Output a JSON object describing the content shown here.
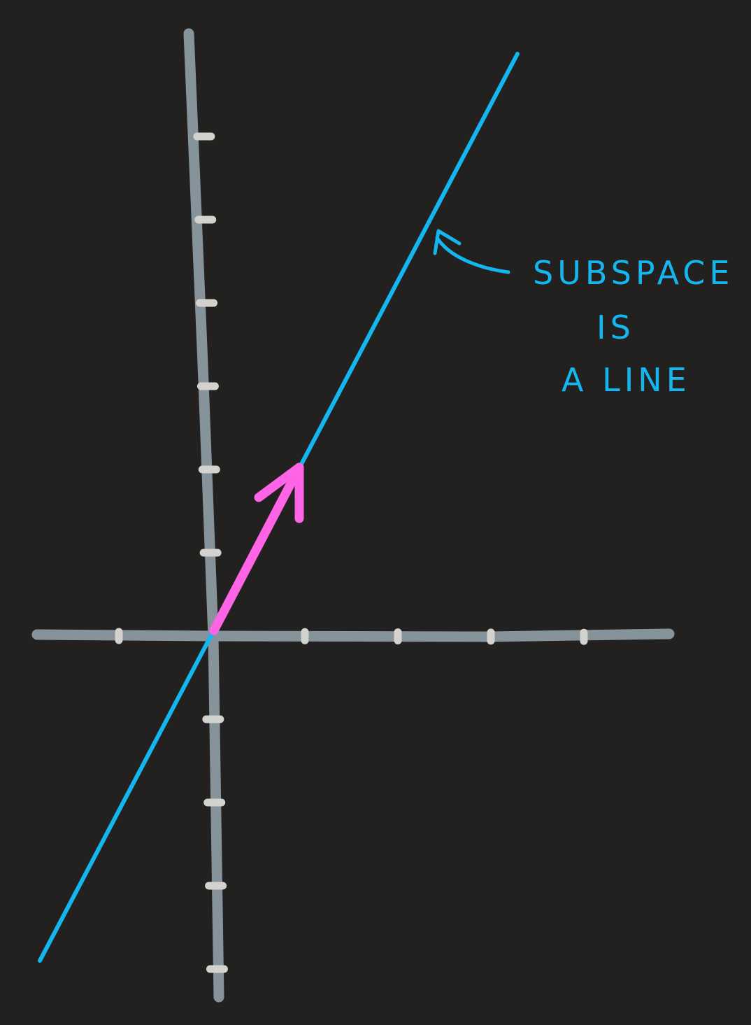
{
  "colors": {
    "background": "#222120",
    "axes": "#87939a",
    "ticks": "#d3d2ce",
    "subspace": "#14b6f0",
    "vector": "#ff63e6"
  },
  "diagram": {
    "type": "hand-drawn coordinate plane",
    "x_axis_ticks": [
      -1,
      1,
      2,
      3,
      4
    ],
    "y_axis_ticks": [
      6,
      5,
      4,
      3,
      2,
      1,
      -1,
      -2,
      -3,
      -4
    ],
    "vector": {
      "from": [
        0,
        0
      ],
      "to": [
        1,
        2
      ]
    },
    "subspace": "line through origin spanned by the vector"
  },
  "annotation": {
    "line1": "SUBSPACE",
    "line2": "IS",
    "line3": "A LINE"
  }
}
